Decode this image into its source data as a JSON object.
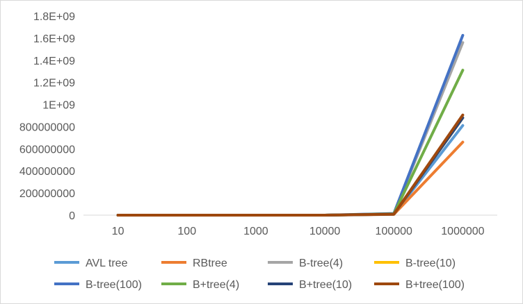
{
  "chart_data": {
    "type": "line",
    "title": "",
    "xlabel": "",
    "ylabel": "",
    "categories": [
      "10",
      "100",
      "1000",
      "10000",
      "100000",
      "1000000"
    ],
    "y_tick_labels": [
      "0",
      "200000000",
      "400000000",
      "600000000",
      "800000000",
      "1E+09",
      "1.2E+09",
      "1.4E+09",
      "1.6E+09",
      "1.8E+09"
    ],
    "ylim": [
      0,
      1800000000
    ],
    "grid": false,
    "legend_position": "bottom",
    "series": [
      {
        "name": "AVL tree",
        "color": "#5b9bd5",
        "values": [
          0,
          0,
          0,
          0,
          8000000,
          810000000
        ]
      },
      {
        "name": "RBtree",
        "color": "#ed7d31",
        "values": [
          0,
          0,
          0,
          0,
          7000000,
          660000000
        ]
      },
      {
        "name": "B-tree(4)",
        "color": "#a5a5a5",
        "values": [
          0,
          0,
          0,
          0,
          14000000,
          1560000000
        ]
      },
      {
        "name": "B-tree(10)",
        "color": "#ffc000",
        "values": [
          0,
          0,
          0,
          0,
          10000000,
          880000000
        ]
      },
      {
        "name": "B-tree(100)",
        "color": "#4472c4",
        "values": [
          0,
          0,
          0,
          0,
          15000000,
          1625000000
        ]
      },
      {
        "name": "B+tree(4)",
        "color": "#70ad47",
        "values": [
          0,
          0,
          0,
          0,
          12000000,
          1310000000
        ]
      },
      {
        "name": "B+tree(10)",
        "color": "#264478",
        "values": [
          0,
          0,
          0,
          0,
          9000000,
          880000000
        ]
      },
      {
        "name": "B+tree(100)",
        "color": "#9e480e",
        "values": [
          0,
          0,
          0,
          0,
          9000000,
          905000000
        ]
      }
    ]
  }
}
